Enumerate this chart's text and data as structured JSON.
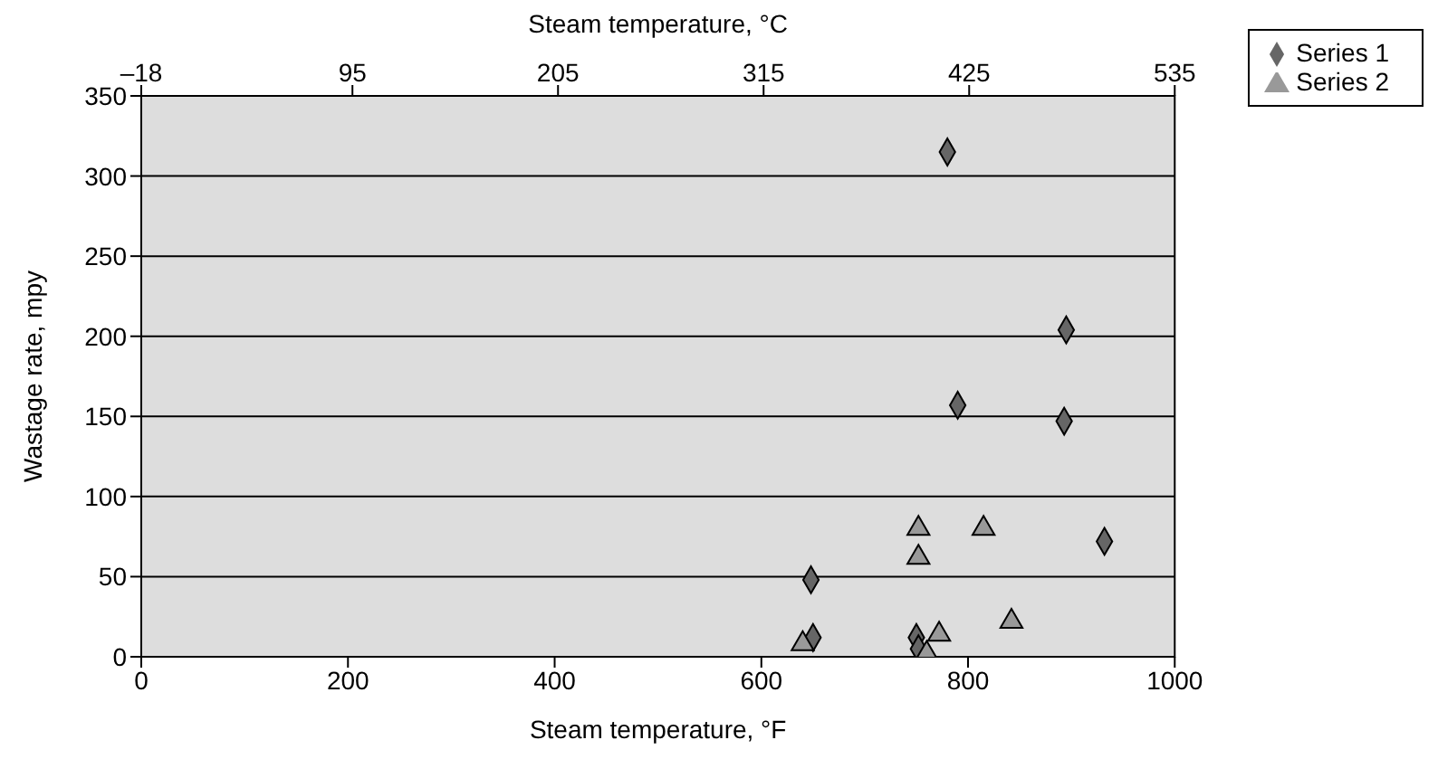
{
  "chart_data": {
    "type": "scatter",
    "xlabel": "Steam temperature, °F",
    "x2label": "Steam temperature, °C",
    "ylabel": "Wastage rate, mpy",
    "xlim": [
      0,
      1000
    ],
    "xticks": [
      0,
      200,
      400,
      600,
      800,
      1000
    ],
    "x2lim": [
      -18,
      535
    ],
    "x2ticks": [
      {
        "value": -18,
        "label": "–18"
      },
      95,
      205,
      315,
      425,
      535
    ],
    "ylim": [
      0,
      350
    ],
    "yticks": [
      0,
      50,
      100,
      150,
      200,
      250,
      300,
      350
    ],
    "grid": "y",
    "legend": "top right",
    "series": [
      {
        "name": "Series 1",
        "color": "#666666",
        "marker": "diamond",
        "x": [
          648,
          650,
          750,
          752,
          790,
          780,
          895,
          893,
          932
        ],
        "values": [
          48,
          12,
          12,
          5,
          157,
          315,
          204,
          147,
          72
        ]
      },
      {
        "name": "Series 2",
        "color": "#999999",
        "marker": "triangle",
        "x": [
          640,
          752,
          752,
          772,
          760,
          815,
          842
        ],
        "values": [
          8,
          80,
          62,
          14,
          2,
          80,
          22
        ]
      }
    ]
  }
}
